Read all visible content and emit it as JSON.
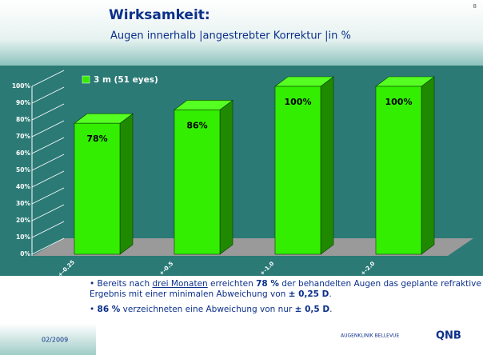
{
  "header": {
    "title": "Wirksamkeit:",
    "subtitle": "Augen innerhalb |angestrebter Korrektur |in %",
    "page": "8"
  },
  "chart_data": {
    "type": "bar",
    "categories": [
      "+-0.25",
      "+-0.5",
      "+-1.0",
      "+-2.0"
    ],
    "series": [
      {
        "name": "3 m (51 eyes)",
        "color": "#33ee00",
        "values": [
          78,
          86,
          100,
          100
        ],
        "value_labels": [
          "78%",
          "86%",
          "100%",
          "100%"
        ]
      }
    ],
    "ylim": [
      0,
      100
    ],
    "yticks": [
      {
        "value": 0,
        "label": "0%"
      },
      {
        "value": 10,
        "label": "10%"
      },
      {
        "value": 20,
        "label": "20%"
      },
      {
        "value": 30,
        "label": "30%"
      },
      {
        "value": 40,
        "label": "40%"
      },
      {
        "value": 50,
        "label": "50%"
      },
      {
        "value": 60,
        "label": "60%"
      },
      {
        "value": 70,
        "label": "70%"
      },
      {
        "value": 80,
        "label": "80%"
      },
      {
        "value": 90,
        "label": "90%"
      },
      {
        "value": 100,
        "label": "100%"
      }
    ],
    "grid": true,
    "legend": "top-left"
  },
  "bullets": [
    [
      "Bereits nach ",
      "drei Monaten",
      " erreichten ",
      "78 %",
      " der behandelten Augen das geplante refraktive Ergebnis mit einer minimalen Abweichung von ",
      "± 0,25 D",
      "."
    ],
    [
      "86 %",
      " verzeichneten eine Abweichung von nur ",
      "± 0,5 D",
      "."
    ]
  ],
  "footer": {
    "date": "02/2009",
    "logo": "AUGENKLINIK BELLEVUE",
    "brand": "QNB"
  }
}
